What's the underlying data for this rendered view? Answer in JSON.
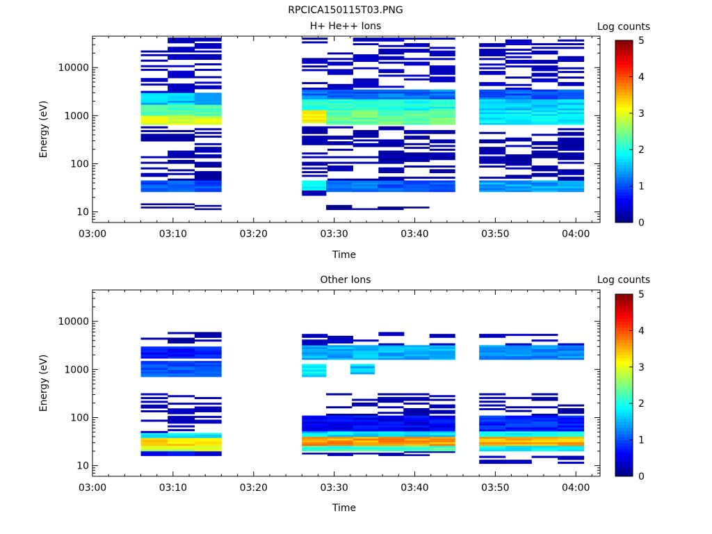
{
  "title": "RPCICA150115T03.PNG",
  "colorbar": {
    "label": "Log counts",
    "ticks": [
      "0",
      "1",
      "2",
      "3",
      "4",
      "5"
    ],
    "range": [
      0,
      5
    ],
    "colormap": [
      "#00007f",
      "#0000ff",
      "#007fff",
      "#00ffff",
      "#7fff7f",
      "#ffff00",
      "#ff7f00",
      "#ff0000",
      "#7f0000"
    ]
  },
  "chart_data": [
    {
      "type": "heatmap",
      "title": "H+ He++ Ions",
      "xlabel": "Time",
      "ylabel": "Energy (eV)",
      "yscale": "log",
      "xlim": [
        "03:00",
        "04:03"
      ],
      "ylim": [
        6,
        45000
      ],
      "xticks": [
        "03:00",
        "03:10",
        "03:20",
        "03:30",
        "03:40",
        "03:50",
        "04:00"
      ],
      "yticks": [
        "10",
        "100",
        "1000",
        "10000"
      ],
      "colorbar_label": "Log counts",
      "zlim": [
        0,
        5
      ],
      "bands": [
        {
          "t": [
            "03:06",
            "03:16"
          ],
          "e": [
            11,
            15
          ],
          "v": 0.1
        },
        {
          "t": [
            "03:06",
            "03:16"
          ],
          "e": [
            26,
            45
          ],
          "v": 1.0
        },
        {
          "t": [
            "03:06",
            "03:16"
          ],
          "e": [
            45,
            600
          ],
          "v": 0.2
        },
        {
          "t": [
            "03:06",
            "03:16"
          ],
          "e": [
            650,
            1000
          ],
          "v": 2.9
        },
        {
          "t": [
            "03:06",
            "03:16"
          ],
          "e": [
            1000,
            1700
          ],
          "v": 2.3
        },
        {
          "t": [
            "03:06",
            "03:16"
          ],
          "e": [
            1700,
            3000
          ],
          "v": 1.6
        },
        {
          "t": [
            "03:06",
            "03:16"
          ],
          "e": [
            3000,
            42000
          ],
          "v": 0.3
        },
        {
          "t": [
            "03:26",
            "03:29"
          ],
          "e": [
            20,
            28
          ],
          "v": 0.3
        },
        {
          "t": [
            "03:26",
            "03:29"
          ],
          "e": [
            28,
            45
          ],
          "v": 1.8
        },
        {
          "t": [
            "03:26",
            "03:29"
          ],
          "e": [
            700,
            1300
          ],
          "v": 3.1
        },
        {
          "t": [
            "03:29",
            "03:45"
          ],
          "e": [
            11,
            15
          ],
          "v": 0.1
        },
        {
          "t": [
            "03:29",
            "03:45"
          ],
          "e": [
            26,
            45
          ],
          "v": 1.1
        },
        {
          "t": [
            "03:26",
            "03:45"
          ],
          "e": [
            45,
            600
          ],
          "v": 0.2
        },
        {
          "t": [
            "03:29",
            "03:45"
          ],
          "e": [
            650,
            1300
          ],
          "v": 2.4
        },
        {
          "t": [
            "03:26",
            "03:45"
          ],
          "e": [
            1300,
            2200
          ],
          "v": 2.0
        },
        {
          "t": [
            "03:26",
            "03:45"
          ],
          "e": [
            2200,
            3500
          ],
          "v": 1.2
        },
        {
          "t": [
            "03:26",
            "03:45"
          ],
          "e": [
            3500,
            42000
          ],
          "v": 0.3
        },
        {
          "t": [
            "03:48",
            "04:01"
          ],
          "e": [
            26,
            45
          ],
          "v": 1.4
        },
        {
          "t": [
            "03:48",
            "04:01"
          ],
          "e": [
            45,
            600
          ],
          "v": 0.2
        },
        {
          "t": [
            "03:48",
            "04:01"
          ],
          "e": [
            650,
            1300
          ],
          "v": 1.8
        },
        {
          "t": [
            "03:48",
            "04:01"
          ],
          "e": [
            1300,
            2200
          ],
          "v": 1.6
        },
        {
          "t": [
            "03:48",
            "04:01"
          ],
          "e": [
            2200,
            3500
          ],
          "v": 1.1
        },
        {
          "t": [
            "03:48",
            "04:01"
          ],
          "e": [
            3500,
            42000
          ],
          "v": 0.3
        }
      ]
    },
    {
      "type": "heatmap",
      "title": "Other Ions",
      "xlabel": "Time",
      "ylabel": "Energy (eV)",
      "yscale": "log",
      "xlim": [
        "03:00",
        "04:03"
      ],
      "ylim": [
        6,
        45000
      ],
      "xticks": [
        "03:00",
        "03:10",
        "03:20",
        "03:30",
        "03:40",
        "03:50",
        "04:00"
      ],
      "yticks": [
        "10",
        "100",
        "1000",
        "10000"
      ],
      "colorbar_label": "Log counts",
      "zlim": [
        0,
        5
      ],
      "bands": [
        {
          "t": [
            "03:06",
            "03:16"
          ],
          "e": [
            16,
            20
          ],
          "v": 0.6
        },
        {
          "t": [
            "03:06",
            "03:16"
          ],
          "e": [
            20,
            26
          ],
          "v": 2.8
        },
        {
          "t": [
            "03:06",
            "03:16"
          ],
          "e": [
            26,
            38
          ],
          "v": 3.3
        },
        {
          "t": [
            "03:06",
            "03:16"
          ],
          "e": [
            38,
            48
          ],
          "v": 1.8
        },
        {
          "t": [
            "03:06",
            "03:16"
          ],
          "e": [
            48,
            320
          ],
          "v": 0.3
        },
        {
          "t": [
            "03:06",
            "03:16"
          ],
          "e": [
            700,
            1500
          ],
          "v": 1.0
        },
        {
          "t": [
            "03:06",
            "03:16"
          ],
          "e": [
            1700,
            3000
          ],
          "v": 0.7
        },
        {
          "t": [
            "03:06",
            "03:16"
          ],
          "e": [
            3500,
            6000
          ],
          "v": 0.2
        },
        {
          "t": [
            "03:26",
            "03:45"
          ],
          "e": [
            16,
            20
          ],
          "v": 0.2
        },
        {
          "t": [
            "03:26",
            "03:45"
          ],
          "e": [
            20,
            26
          ],
          "v": 2.2
        },
        {
          "t": [
            "03:26",
            "03:45"
          ],
          "e": [
            26,
            40
          ],
          "v": 3.6
        },
        {
          "t": [
            "03:26",
            "03:45"
          ],
          "e": [
            40,
            52
          ],
          "v": 1.7
        },
        {
          "t": [
            "03:26",
            "03:45"
          ],
          "e": [
            52,
            110
          ],
          "v": 0.6
        },
        {
          "t": [
            "03:29",
            "03:45"
          ],
          "e": [
            110,
            320
          ],
          "v": 0.2
        },
        {
          "t": [
            "03:26",
            "03:29"
          ],
          "e": [
            700,
            1300
          ],
          "v": 1.8
        },
        {
          "t": [
            "03:32",
            "03:35"
          ],
          "e": [
            800,
            1300
          ],
          "v": 1.6
        },
        {
          "t": [
            "03:26",
            "03:45"
          ],
          "e": [
            1600,
            3200
          ],
          "v": 1.5
        },
        {
          "t": [
            "03:26",
            "03:45"
          ],
          "e": [
            3200,
            6000
          ],
          "v": 0.3
        },
        {
          "t": [
            "03:48",
            "04:01"
          ],
          "e": [
            11,
            16
          ],
          "v": 0.3
        },
        {
          "t": [
            "03:48",
            "04:01"
          ],
          "e": [
            20,
            26
          ],
          "v": 1.9
        },
        {
          "t": [
            "03:48",
            "04:01"
          ],
          "e": [
            26,
            40
          ],
          "v": 3.5
        },
        {
          "t": [
            "03:48",
            "04:01"
          ],
          "e": [
            40,
            52
          ],
          "v": 1.9
        },
        {
          "t": [
            "03:48",
            "04:01"
          ],
          "e": [
            52,
            110
          ],
          "v": 0.8
        },
        {
          "t": [
            "03:48",
            "04:01"
          ],
          "e": [
            110,
            320
          ],
          "v": 0.2
        },
        {
          "t": [
            "03:48",
            "04:01"
          ],
          "e": [
            1600,
            3200
          ],
          "v": 1.3
        },
        {
          "t": [
            "03:48",
            "04:01"
          ],
          "e": [
            3200,
            5500
          ],
          "v": 0.3
        }
      ]
    }
  ]
}
